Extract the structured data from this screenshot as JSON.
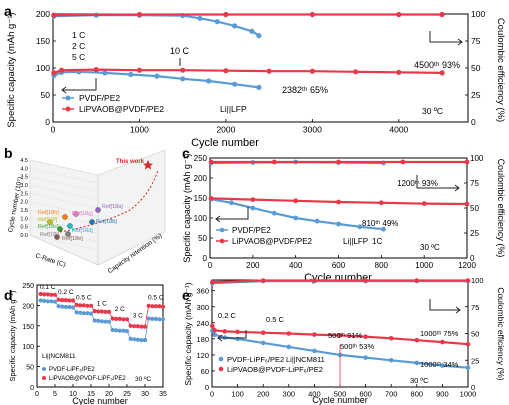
{
  "colors": {
    "blue": "#5b9bd5",
    "red": "#e8394a",
    "dark": "#222222"
  },
  "chart_data": [
    {
      "id": "a",
      "panel_label": "a",
      "type": "scatter",
      "xlabel": "Cycle number",
      "ylabel": "Specific capacity (mAh g⁻¹)",
      "ylabel_right": "Coulombic efficiency (%)",
      "xlim": [
        0,
        4800
      ],
      "ylim": [
        0,
        200
      ],
      "y2lim": [
        0,
        100
      ],
      "xticks": [
        "0",
        "1000",
        "2000",
        "3000",
        "4000"
      ],
      "yticks": [
        "0",
        "50",
        "100",
        "150",
        "200"
      ],
      "y2ticks": [
        "0",
        "25",
        "50",
        "75",
        "100"
      ],
      "series": [
        {
          "name": "PVDF/PE2",
          "color": "#5b9bd5",
          "axis": "left",
          "x": [
            10,
            100,
            300,
            600,
            900,
            1200,
            1500,
            1800,
            2100,
            2382
          ],
          "y": [
            86,
            92,
            93,
            91,
            88,
            85,
            80,
            76,
            70,
            64
          ]
        },
        {
          "name": "LiPVAOB@PVDF/PE2",
          "color": "#e8394a",
          "axis": "left",
          "x": [
            10,
            100,
            500,
            1000,
            1500,
            2000,
            2500,
            3000,
            3500,
            4000,
            4500
          ],
          "y": [
            91,
            96,
            97,
            96,
            96,
            95,
            94,
            94,
            93,
            92,
            91
          ]
        },
        {
          "name": "PVDF/PE2 CE",
          "color": "#5b9bd5",
          "axis": "right",
          "x": [
            10,
            500,
            1000,
            1500,
            1700,
            1900,
            2100,
            2300,
            2382
          ],
          "y": [
            98,
            99,
            99,
            98.5,
            96,
            93,
            89,
            84,
            80
          ]
        },
        {
          "name": "LiPVAOB@PVDF/PE2 CE",
          "color": "#e8394a",
          "axis": "right",
          "x": [
            10,
            1000,
            2000,
            3000,
            4000,
            4500
          ],
          "y": [
            99,
            99.5,
            99.5,
            99.5,
            99.5,
            99.5
          ]
        }
      ],
      "annotations": {
        "rates": [
          "1 C",
          "2 C",
          "5 C"
        ],
        "rate_main": "10 C",
        "pvdf_retention": "2382ᵗʰ 65%",
        "lipvaob_retention": "4500ᵗʰ 93%",
        "cell": "Li||LFP",
        "temp": "30 ºC"
      }
    },
    {
      "id": "b",
      "panel_label": "b",
      "type": "scatter",
      "axis_titles": {
        "z": "Cycle number (10⁵)",
        "x": "C-Rate (C)",
        "y": "Capacity retention (%)"
      },
      "zticks": [
        "0.0",
        "0.5",
        "1.0",
        "1.5",
        "2.0",
        "2.5",
        "3.0",
        "3.5",
        "4.0",
        "4.5"
      ],
      "points": [
        {
          "label": "This work",
          "color": "#d62728"
        },
        {
          "label": "Ref[18a]",
          "color": "#9467bd"
        },
        {
          "label": "Ref[18b]",
          "color": "#1f77b4"
        },
        {
          "label": "Ref[18c]",
          "color": "#2ca02c"
        },
        {
          "label": "Ref[18d]",
          "color": "#17becf"
        },
        {
          "label": "Ref[18e]",
          "color": "#8c564b"
        },
        {
          "label": "Ref[18f]",
          "color": "#bcbd22"
        },
        {
          "label": "Ref[18g]",
          "color": "#e377c2"
        },
        {
          "label": "Ref[18h]",
          "color": "#ff7f0e"
        },
        {
          "label": "Ref[18i]",
          "color": "#7f7f7f"
        }
      ]
    },
    {
      "id": "c",
      "panel_label": "c",
      "type": "scatter",
      "xlabel": "Cycle number",
      "ylabel": "Specific capacity (mAh g⁻¹)",
      "ylabel_right": "Coulombic efficiency (%)",
      "xlim": [
        0,
        1200
      ],
      "ylim": [
        0,
        250
      ],
      "y2lim": [
        0,
        100
      ],
      "xticks": [
        "0",
        "200",
        "400",
        "600",
        "800",
        "1000",
        "1200"
      ],
      "yticks": [
        "0",
        "50",
        "100",
        "150",
        "200",
        "250"
      ],
      "y2ticks": [
        "0",
        "25",
        "50",
        "75",
        "100"
      ],
      "series": [
        {
          "name": "PVDF/PE2",
          "color": "#5b9bd5",
          "axis": "left",
          "x": [
            5,
            100,
            200,
            300,
            400,
            500,
            600,
            700,
            810
          ],
          "y": [
            147,
            138,
            125,
            112,
            100,
            92,
            85,
            78,
            72
          ]
        },
        {
          "name": "LiPVAOB@PVDF/PE2",
          "color": "#e8394a",
          "axis": "left",
          "x": [
            5,
            200,
            400,
            600,
            800,
            1000,
            1200
          ],
          "y": [
            149,
            146,
            143,
            140,
            138,
            136,
            135
          ]
        },
        {
          "name": "PVDF/PE2 CE",
          "color": "#5b9bd5",
          "axis": "right",
          "x": [
            5,
            200,
            400,
            600,
            810
          ],
          "y": [
            95,
            95.5,
            96,
            95.5,
            95
          ]
        },
        {
          "name": "LiPVAOB@PVDF/PE2 CE",
          "color": "#e8394a",
          "axis": "right",
          "x": [
            5,
            300,
            600,
            900,
            1200
          ],
          "y": [
            96,
            96,
            96,
            96,
            96
          ]
        }
      ],
      "annotations": {
        "pvdf_retention": "810ᵗʰ 49%",
        "lipvaob_retention": "1200ᵗʰ 93%",
        "cell": "Li||LFP",
        "rate": "1C",
        "temp": "30 ºC"
      }
    },
    {
      "id": "d",
      "panel_label": "d",
      "type": "scatter",
      "xlabel": "Cycle number",
      "ylabel": "Specific capacity (mAh g⁻¹)",
      "xlim": [
        0,
        35
      ],
      "ylim": [
        0,
        250
      ],
      "xticks": [
        "0",
        "5",
        "10",
        "15",
        "20",
        "25",
        "30",
        "35"
      ],
      "yticks": [
        "0",
        "50",
        "100",
        "150",
        "200",
        "250"
      ],
      "rate_labels": [
        "0.1 C",
        "0.2 C",
        "0.5 C",
        "1 C",
        "2 C",
        "3 C",
        "0.5 C"
      ],
      "series": [
        {
          "name": "PVDF-LiPF₆/PE2",
          "color": "#5b9bd5",
          "x": [
            1,
            2,
            3,
            4,
            5,
            6,
            7,
            8,
            9,
            10,
            11,
            12,
            13,
            14,
            15,
            16,
            17,
            18,
            19,
            20,
            21,
            22,
            23,
            24,
            25,
            26,
            27,
            28,
            29,
            30,
            31,
            32,
            33,
            34,
            35
          ],
          "y": [
            212,
            211,
            210,
            210,
            209,
            198,
            197,
            196,
            196,
            195,
            183,
            182,
            181,
            181,
            180,
            163,
            162,
            161,
            160,
            160,
            140,
            139,
            138,
            138,
            137,
            118,
            117,
            116,
            115,
            115,
            168,
            167,
            167,
            166,
            166
          ]
        },
        {
          "name": "LiPVAOB@PVDF-LiPF₆/PE2",
          "color": "#e8394a",
          "x": [
            1,
            2,
            3,
            4,
            5,
            6,
            7,
            8,
            9,
            10,
            11,
            12,
            13,
            14,
            15,
            16,
            17,
            18,
            19,
            20,
            21,
            22,
            23,
            24,
            25,
            26,
            27,
            28,
            29,
            30,
            31,
            32,
            33,
            34,
            35
          ],
          "y": [
            228,
            227,
            227,
            226,
            226,
            214,
            213,
            213,
            212,
            212,
            201,
            200,
            200,
            199,
            199,
            186,
            185,
            185,
            184,
            184,
            168,
            167,
            167,
            166,
            166,
            150,
            149,
            149,
            148,
            148,
            199,
            198,
            198,
            198,
            197
          ]
        }
      ],
      "annotations": {
        "cell": "Li||NCM811",
        "temp": "30 ºC"
      }
    },
    {
      "id": "e",
      "panel_label": "e",
      "type": "scatter",
      "xlabel": "Cycle number",
      "ylabel": "Specific capacity (mAh g⁻¹)",
      "ylabel_right": "Coulombic efficiency (%)",
      "xlim": [
        0,
        1000
      ],
      "ylim": [
        0,
        400
      ],
      "y2lim": [
        0,
        100
      ],
      "xticks": [
        "0",
        "100",
        "200",
        "300",
        "400",
        "500",
        "600",
        "700",
        "800",
        "900",
        "1000"
      ],
      "yticks": [
        "0",
        "60",
        "120",
        "180",
        "240",
        "300",
        "360"
      ],
      "y2ticks": [
        "0",
        "25",
        "50",
        "75",
        "100"
      ],
      "series": [
        {
          "name": "PVDF-LiPF₆/PE2",
          "color": "#5b9bd5",
          "axis": "left",
          "x": [
            1,
            10,
            50,
            100,
            200,
            300,
            400,
            500,
            600,
            700,
            800,
            900,
            1000
          ],
          "y": [
            210,
            195,
            185,
            180,
            165,
            150,
            135,
            120,
            110,
            100,
            90,
            80,
            72
          ]
        },
        {
          "name": "LiPVAOB@PVDF-LiPF₆/PE2",
          "color": "#e8394a",
          "axis": "left",
          "x": [
            1,
            10,
            50,
            100,
            200,
            300,
            400,
            500,
            600,
            700,
            800,
            900,
            1000
          ],
          "y": [
            228,
            212,
            208,
            206,
            203,
            200,
            196,
            193,
            188,
            182,
            175,
            168,
            160
          ]
        },
        {
          "name": "PVDF-LiPF₆/PE2 CE",
          "color": "#5b9bd5",
          "axis": "right",
          "x": [
            1,
            200,
            400,
            600,
            800,
            1000
          ],
          "y": [
            97,
            99,
            99,
            99,
            99,
            99
          ]
        },
        {
          "name": "LiPVAOB@PVDF-LiPF₆/PE2 CE",
          "color": "#e8394a",
          "axis": "right",
          "x": [
            1,
            200,
            400,
            600,
            800,
            1000
          ],
          "y": [
            98,
            99.5,
            99.5,
            99.5,
            99.5,
            99.5
          ]
        }
      ],
      "annotations": {
        "rate_a": "0.2 C",
        "rate_b": "0.5 C",
        "r1": "500ᵗʰ 91%",
        "r2": "500ᵗʰ 53%",
        "r3": "1000ᵗʰ 75%",
        "r4": "1000ᵗʰ 34%",
        "cell": "Li||NCM811",
        "temp": "30 ºC"
      }
    }
  ]
}
